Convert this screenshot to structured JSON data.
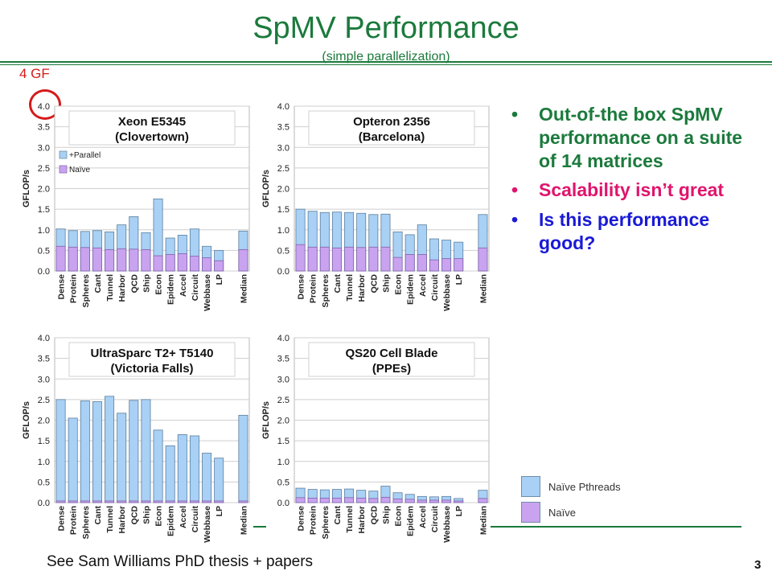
{
  "slide": {
    "title": "SpMV Performance",
    "subtitle": "(simple parallelization)",
    "annotation": "4 GF",
    "footer": "See Sam Williams PhD thesis + papers",
    "page_number": "3"
  },
  "bullets": [
    {
      "text": "Out-of-the box SpMV performance on a suite of 14 matrices",
      "color": "#1b7a3c"
    },
    {
      "text": "Scalability isn’t great",
      "color": "#e0146c"
    },
    {
      "text": "Is this performance good?",
      "color": "#1a1ad6"
    }
  ],
  "legend": {
    "items": [
      {
        "label": "Naïve Pthreads",
        "color": "#a9d0f5"
      },
      {
        "label": "Naïve",
        "color": "#c9a3f0"
      }
    ]
  },
  "colors": {
    "accent": "#1b7a3c",
    "parallel_fill": "#a9d0f5",
    "naive_fill": "#c9a3f0",
    "annotation": "#d41a1a"
  },
  "chart_data": [
    {
      "type": "bar",
      "title": "Xeon E5345",
      "subtitle": "(Clovertown)",
      "ylabel": "GFLOP/s",
      "ylim": [
        0,
        4.0
      ],
      "yticks": [
        "0.0",
        "0.5",
        "1.0",
        "1.5",
        "2.0",
        "2.5",
        "3.0",
        "3.5",
        "4.0"
      ],
      "grid": true,
      "legend": {
        "placement": "top-left",
        "entries": [
          "+Parallel",
          "Naïve"
        ]
      },
      "categories": [
        "Dense",
        "Protein",
        "Spheres",
        "Cant",
        "Tunnel",
        "Harbor",
        "QCD",
        "Ship",
        "Econ",
        "Epidem",
        "Accel",
        "Circuit",
        "Webbase",
        "LP",
        "",
        "Median"
      ],
      "series": [
        {
          "name": "+Parallel",
          "values": [
            1.02,
            0.98,
            0.96,
            0.98,
            0.95,
            1.12,
            1.32,
            0.93,
            1.75,
            0.8,
            0.87,
            1.02,
            0.6,
            0.5,
            null,
            0.97
          ]
        },
        {
          "name": "Naïve",
          "values": [
            0.6,
            0.58,
            0.57,
            0.56,
            0.52,
            0.54,
            0.53,
            0.52,
            0.37,
            0.4,
            0.42,
            0.36,
            0.32,
            0.25,
            null,
            0.52
          ]
        }
      ]
    },
    {
      "type": "bar",
      "title": "Opteron 2356",
      "subtitle": "(Barcelona)",
      "ylabel": "GFLOP/s",
      "ylim": [
        0,
        4.0
      ],
      "yticks": [
        "0.0",
        "0.5",
        "1.0",
        "1.5",
        "2.0",
        "2.5",
        "3.0",
        "3.5",
        "4.0"
      ],
      "grid": true,
      "categories": [
        "Dense",
        "Protein",
        "Spheres",
        "Cant",
        "Tunnel",
        "Harbor",
        "QCD",
        "Ship",
        "Econ",
        "Epidem",
        "Accel",
        "Circuit",
        "Webbase",
        "LP",
        "",
        "Median"
      ],
      "series": [
        {
          "name": "+Parallel",
          "values": [
            1.5,
            1.45,
            1.42,
            1.43,
            1.42,
            1.4,
            1.37,
            1.38,
            0.95,
            0.88,
            1.12,
            0.78,
            0.75,
            0.7,
            null,
            1.37
          ]
        },
        {
          "name": "Naïve",
          "values": [
            0.64,
            0.58,
            0.58,
            0.56,
            0.58,
            0.57,
            0.58,
            0.58,
            0.33,
            0.4,
            0.4,
            0.27,
            0.3,
            0.3,
            null,
            0.56
          ]
        }
      ]
    },
    {
      "type": "bar",
      "title": "UltraSparc T2+ T5140",
      "subtitle": "(Victoria Falls)",
      "ylabel": "GFLOP/s",
      "ylim": [
        0,
        4.0
      ],
      "yticks": [
        "0.0",
        "0.5",
        "1.0",
        "1.5",
        "2.0",
        "2.5",
        "3.0",
        "3.5",
        "4.0"
      ],
      "grid": true,
      "categories": [
        "Dense",
        "Protein",
        "Spheres",
        "Cant",
        "Tunnel",
        "Harbor",
        "QCD",
        "Ship",
        "Econ",
        "Epidem",
        "Accel",
        "Circuit",
        "Webbase",
        "LP",
        "",
        "Median"
      ],
      "series": [
        {
          "name": "+Parallel",
          "values": [
            2.5,
            2.05,
            2.47,
            2.45,
            2.58,
            2.17,
            2.48,
            2.5,
            1.76,
            1.38,
            1.65,
            1.62,
            1.2,
            1.08,
            null,
            2.12
          ]
        },
        {
          "name": "Naïve",
          "values": [
            0.04,
            0.04,
            0.04,
            0.04,
            0.04,
            0.04,
            0.04,
            0.04,
            0.04,
            0.04,
            0.04,
            0.04,
            0.04,
            0.04,
            null,
            0.04
          ]
        }
      ]
    },
    {
      "type": "bar",
      "title": "QS20 Cell Blade",
      "subtitle": "(PPEs)",
      "ylabel": "GFLOP/s",
      "ylim": [
        0,
        4.0
      ],
      "yticks": [
        "0.0",
        "0.5",
        "1.0",
        "1.5",
        "2.0",
        "2.5",
        "3.0",
        "3.5",
        "4.0"
      ],
      "grid": true,
      "categories": [
        "Dense",
        "Protein",
        "Spheres",
        "Cant",
        "Tunnel",
        "Harbor",
        "QCD",
        "Ship",
        "Econ",
        "Epidem",
        "Accel",
        "Circuit",
        "Webbase",
        "LP",
        "",
        "Median"
      ],
      "series": [
        {
          "name": "+Parallel",
          "values": [
            0.35,
            0.32,
            0.31,
            0.32,
            0.33,
            0.3,
            0.28,
            0.4,
            0.24,
            0.2,
            0.15,
            0.14,
            0.15,
            0.1,
            null,
            0.3
          ]
        },
        {
          "name": "Naïve",
          "values": [
            0.12,
            0.11,
            0.11,
            0.11,
            0.12,
            0.11,
            0.1,
            0.13,
            0.09,
            0.08,
            0.06,
            0.06,
            0.06,
            0.04,
            null,
            0.1
          ]
        }
      ]
    }
  ]
}
